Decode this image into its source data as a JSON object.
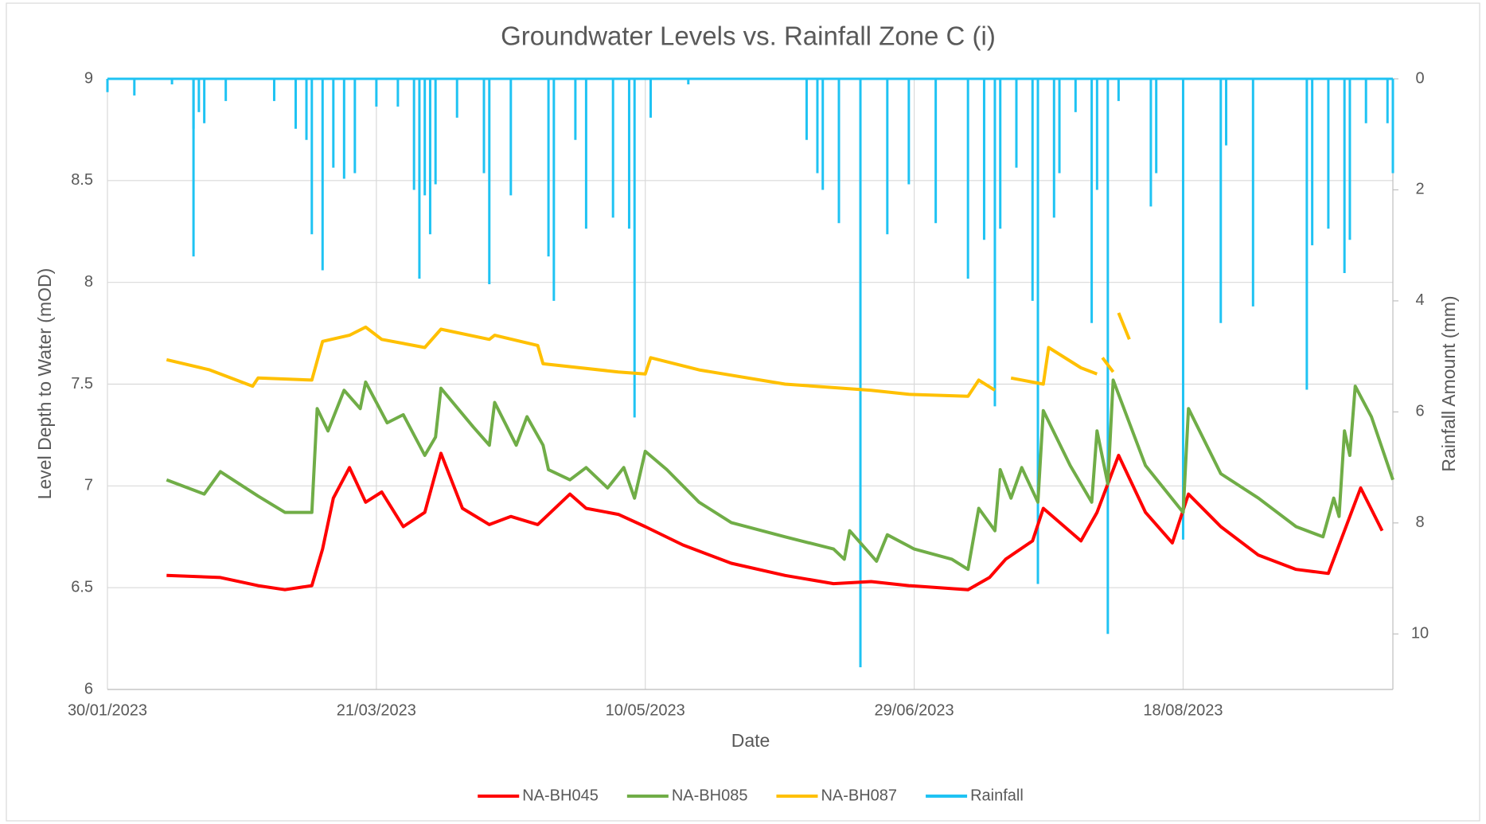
{
  "chart_data": {
    "type": "line",
    "title": "Groundwater Levels vs. Rainfall Zone C (i)",
    "x_label": "Date",
    "y_label": "Level Depth to Water (mOD)",
    "y2_label": "Rainfall Amount (mm)",
    "xlim": [
      "30/01/2023",
      "26/09/2023"
    ],
    "xticks": [
      "30/01/2023",
      "21/03/2023",
      "10/05/2023",
      "29/06/2023",
      "18/08/2023"
    ],
    "ylim": [
      6,
      9
    ],
    "yticks": [
      6,
      6.5,
      7,
      7.5,
      8,
      8.5,
      9
    ],
    "y2lim": [
      0,
      11
    ],
    "y2ticks": [
      0,
      2,
      4,
      6,
      8,
      10
    ],
    "y2_inverted": true,
    "grid": true,
    "legend": "bottom",
    "series": [
      {
        "name": "NA-BH045",
        "color": "#ff0000",
        "x": [
          "10/02/2023",
          "20/02/2023",
          "27/02/2023",
          "04/03/2023",
          "09/03/2023",
          "11/03/2023",
          "13/03/2023",
          "16/03/2023",
          "19/03/2023",
          "22/03/2023",
          "26/03/2023",
          "30/03/2023",
          "02/04/2023",
          "06/04/2023",
          "11/04/2023",
          "15/04/2023",
          "20/04/2023",
          "26/04/2023",
          "29/04/2023",
          "05/05/2023",
          "10/05/2023",
          "17/05/2023",
          "26/05/2023",
          "05/06/2023",
          "14/06/2023",
          "21/06/2023",
          "28/06/2023",
          "09/07/2023",
          "13/07/2023",
          "16/07/2023",
          "21/07/2023",
          "23/07/2023",
          "30/07/2023",
          "02/08/2023",
          "06/08/2023",
          "11/08/2023",
          "16/08/2023",
          "19/08/2023",
          "25/08/2023",
          "01/09/2023",
          "08/09/2023",
          "14/09/2023",
          "20/09/2023",
          "24/09/2023"
        ],
        "values": [
          6.56,
          6.55,
          6.51,
          6.49,
          6.51,
          6.69,
          6.94,
          7.09,
          6.92,
          6.97,
          6.8,
          6.87,
          7.16,
          6.89,
          6.81,
          6.85,
          6.81,
          6.96,
          6.89,
          6.86,
          6.8,
          6.71,
          6.62,
          6.56,
          6.52,
          6.53,
          6.51,
          6.49,
          6.55,
          6.64,
          6.73,
          6.89,
          6.73,
          6.87,
          7.15,
          6.87,
          6.72,
          6.96,
          6.8,
          6.66,
          6.59,
          6.57,
          6.99,
          6.78
        ]
      },
      {
        "name": "NA-BH085",
        "color": "#70ad47",
        "x": [
          "10/02/2023",
          "17/02/2023",
          "20/02/2023",
          "27/02/2023",
          "04/03/2023",
          "09/03/2023",
          "10/03/2023",
          "12/03/2023",
          "15/03/2023",
          "18/03/2023",
          "19/03/2023",
          "23/03/2023",
          "26/03/2023",
          "30/03/2023",
          "01/04/2023",
          "02/04/2023",
          "08/04/2023",
          "11/04/2023",
          "12/04/2023",
          "16/04/2023",
          "18/04/2023",
          "21/04/2023",
          "22/04/2023",
          "26/04/2023",
          "29/04/2023",
          "03/05/2023",
          "06/05/2023",
          "08/05/2023",
          "10/05/2023",
          "14/05/2023",
          "20/05/2023",
          "26/05/2023",
          "05/06/2023",
          "14/06/2023",
          "16/06/2023",
          "17/06/2023",
          "22/06/2023",
          "24/06/2023",
          "29/06/2023",
          "06/07/2023",
          "09/07/2023",
          "11/07/2023",
          "14/07/2023",
          "15/07/2023",
          "17/07/2023",
          "19/07/2023",
          "22/07/2023",
          "23/07/2023",
          "28/07/2023",
          "01/08/2023",
          "02/08/2023",
          "04/08/2023",
          "05/08/2023",
          "11/08/2023",
          "18/08/2023",
          "19/08/2023",
          "25/08/2023",
          "01/09/2023",
          "08/09/2023",
          "13/09/2023",
          "15/09/2023",
          "16/09/2023",
          "17/09/2023",
          "18/09/2023",
          "19/09/2023",
          "22/09/2023",
          "26/09/2023"
        ],
        "values": [
          7.03,
          6.96,
          7.07,
          6.95,
          6.87,
          6.87,
          7.38,
          7.27,
          7.47,
          7.38,
          7.51,
          7.31,
          7.35,
          7.15,
          7.24,
          7.48,
          7.29,
          7.2,
          7.41,
          7.2,
          7.34,
          7.2,
          7.08,
          7.03,
          7.09,
          6.99,
          7.09,
          6.94,
          7.17,
          7.08,
          6.92,
          6.82,
          6.75,
          6.69,
          6.64,
          6.78,
          6.63,
          6.76,
          6.69,
          6.64,
          6.59,
          6.89,
          6.78,
          7.08,
          6.94,
          7.09,
          6.92,
          7.37,
          7.1,
          6.92,
          7.27,
          7.01,
          7.52,
          7.1,
          6.87,
          7.38,
          7.06,
          6.94,
          6.8,
          6.75,
          6.94,
          6.85,
          7.27,
          7.15,
          7.49,
          7.34,
          7.03
        ]
      },
      {
        "name": "NA-BH087",
        "color": "#ffc000",
        "x": [
          "10/02/2023",
          "18/02/2023",
          "26/02/2023",
          "27/02/2023",
          "09/03/2023",
          "11/03/2023",
          "16/03/2023",
          "19/03/2023",
          "22/03/2023",
          "30/03/2023",
          "02/04/2023",
          "11/04/2023",
          "12/04/2023",
          "20/04/2023",
          "21/04/2023",
          "05/05/2023",
          "10/05/2023",
          "11/05/2023",
          "20/05/2023",
          "05/06/2023",
          "21/06/2023",
          "28/06/2023",
          "09/07/2023",
          "11/07/2023",
          "14/07/2023",
          "16/07/2023",
          "17/07/2023",
          "23/07/2023",
          "24/07/2023",
          "30/07/2023",
          "02/08/2023",
          "03/08/2023",
          "03/08/2023",
          "05/08/2023",
          "06/08/2023",
          "06/08/2023",
          "08/08/2023"
        ],
        "values": [
          7.62,
          7.57,
          7.49,
          7.53,
          7.52,
          7.71,
          7.74,
          7.78,
          7.72,
          7.68,
          7.77,
          7.72,
          7.74,
          7.69,
          7.6,
          7.56,
          7.55,
          7.63,
          7.57,
          7.5,
          7.47,
          7.45,
          7.44,
          7.52,
          7.47,
          null,
          7.53,
          7.5,
          7.68,
          7.58,
          7.55,
          null,
          7.63,
          7.56,
          null,
          7.85,
          7.72
        ]
      },
      {
        "name": "Rainfall",
        "color": "#1fc3f3",
        "axis": "y2",
        "mark": "spike",
        "x": [
          "30/01/2023",
          "04/02/2023",
          "11/02/2023",
          "15/02/2023",
          "15/02/2023",
          "16/02/2023",
          "17/02/2023",
          "21/02/2023",
          "02/03/2023",
          "06/03/2023",
          "08/03/2023",
          "09/03/2023",
          "11/03/2023",
          "13/03/2023",
          "15/03/2023",
          "17/03/2023",
          "21/03/2023",
          "25/03/2023",
          "28/03/2023",
          "29/03/2023",
          "30/03/2023",
          "31/03/2023",
          "01/04/2023",
          "05/04/2023",
          "10/04/2023",
          "11/04/2023",
          "15/04/2023",
          "22/04/2023",
          "23/04/2023",
          "27/04/2023",
          "29/04/2023",
          "04/05/2023",
          "07/05/2023",
          "08/05/2023",
          "11/05/2023",
          "18/05/2023",
          "09/06/2023",
          "11/06/2023",
          "12/06/2023",
          "15/06/2023",
          "19/06/2023",
          "24/06/2023",
          "28/06/2023",
          "03/07/2023",
          "09/07/2023",
          "12/07/2023",
          "14/07/2023",
          "15/07/2023",
          "18/07/2023",
          "21/07/2023",
          "22/07/2023",
          "25/07/2023",
          "26/07/2023",
          "29/07/2023",
          "01/08/2023",
          "02/08/2023",
          "04/08/2023",
          "06/08/2023",
          "12/08/2023",
          "13/08/2023",
          "18/08/2023",
          "25/08/2023",
          "26/08/2023",
          "31/08/2023",
          "10/09/2023",
          "11/09/2023",
          "14/09/2023",
          "17/09/2023",
          "18/09/2023",
          "21/09/2023",
          "25/09/2023",
          "26/09/2023"
        ],
        "values": [
          0.24,
          0.3,
          0.1,
          0.9,
          3.2,
          0.6,
          0.8,
          0.4,
          0.4,
          0.9,
          1.1,
          2.8,
          3.45,
          1.6,
          1.8,
          1.7,
          0.5,
          0.5,
          2.0,
          3.6,
          2.1,
          2.8,
          1.9,
          0.7,
          1.7,
          3.7,
          2.1,
          3.2,
          4.0,
          1.1,
          2.7,
          2.5,
          2.7,
          6.1,
          0.7,
          0.1,
          1.1,
          1.7,
          2.0,
          2.6,
          10.6,
          2.8,
          1.9,
          2.6,
          3.6,
          2.9,
          5.9,
          2.7,
          1.6,
          4.0,
          9.1,
          2.5,
          1.7,
          0.6,
          4.4,
          2.0,
          10.0,
          0.4,
          2.3,
          1.7,
          8.3,
          4.4,
          1.2,
          4.1,
          5.6,
          3.0,
          2.7,
          3.5,
          2.9,
          0.8,
          0.8,
          1.7
        ]
      }
    ]
  }
}
